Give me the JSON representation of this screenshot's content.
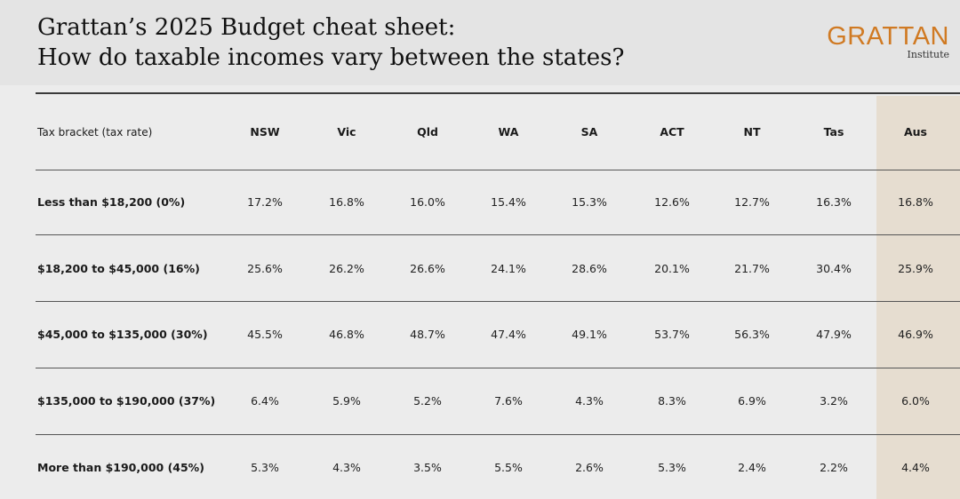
{
  "header": {
    "title_line1": "Grattan’s 2025 Budget cheat sheet:",
    "title_line2": "How do taxable incomes vary between the states?",
    "logo_word": "GRATTAN",
    "logo_sub": "Institute"
  },
  "table": {
    "header_label": "Tax bracket (tax rate)",
    "columns": [
      "NSW",
      "Vic",
      "Qld",
      "WA",
      "SA",
      "ACT",
      "NT",
      "Tas",
      "Aus"
    ],
    "rows": [
      {
        "label": "Less than $18,200 (0%)",
        "values": [
          "17.2%",
          "16.8%",
          "16.0%",
          "15.4%",
          "15.3%",
          "12.6%",
          "12.7%",
          "16.3%",
          "16.8%"
        ]
      },
      {
        "label": "$18,200 to $45,000 (16%)",
        "values": [
          "25.6%",
          "26.2%",
          "26.6%",
          "24.1%",
          "28.6%",
          "20.1%",
          "21.7%",
          "30.4%",
          "25.9%"
        ]
      },
      {
        "label": "$45,000 to $135,000 (30%)",
        "values": [
          "45.5%",
          "46.8%",
          "48.7%",
          "47.4%",
          "49.1%",
          "53.7%",
          "56.3%",
          "47.9%",
          "46.9%"
        ]
      },
      {
        "label": "$135,000 to $190,000 (37%)",
        "values": [
          "6.4%",
          "5.9%",
          "5.2%",
          "7.6%",
          "4.3%",
          "8.3%",
          "6.9%",
          "3.2%",
          "6.0%"
        ]
      },
      {
        "label": "More than $190,000 (45%)",
        "values": [
          "5.3%",
          "4.3%",
          "3.5%",
          "5.5%",
          "2.6%",
          "5.3%",
          "2.4%",
          "2.2%",
          "4.4%"
        ]
      }
    ]
  },
  "colors": {
    "logo": "#d07a23",
    "aus_highlight": "#e6ddd0",
    "background": "#ececec"
  }
}
